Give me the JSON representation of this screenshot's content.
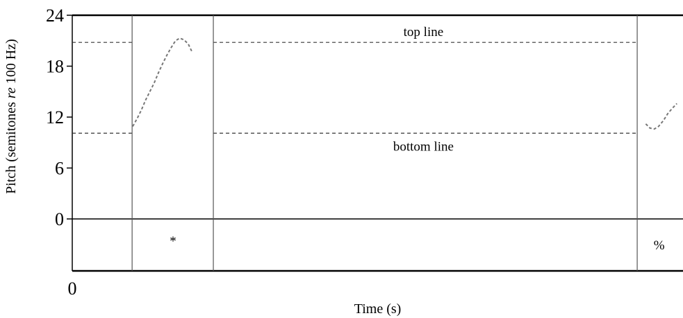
{
  "chart_data": {
    "type": "line",
    "title": "",
    "xlabel": "Time (s)",
    "ylabel_parts": [
      "Pitch (semitones ",
      "re",
      " 100 Hz)"
    ],
    "ylim": [
      0,
      24
    ],
    "y_ticks": [
      0,
      6,
      12,
      18,
      24
    ],
    "x_tick_labels": [
      "0"
    ],
    "grid": false,
    "reference_lines": [
      {
        "name": "top line",
        "y": 20.8
      },
      {
        "name": "bottom line",
        "y": 10.1
      }
    ],
    "segment_labels": [
      "*",
      "%"
    ],
    "series": [
      {
        "points": [
          [
            0.099,
            10.9
          ],
          [
            0.106,
            11.8
          ],
          [
            0.113,
            12.8
          ],
          [
            0.12,
            14.0
          ],
          [
            0.127,
            15.0
          ],
          [
            0.134,
            16.0
          ],
          [
            0.141,
            17.2
          ],
          [
            0.148,
            18.3
          ],
          [
            0.155,
            19.3
          ],
          [
            0.162,
            20.2
          ],
          [
            0.169,
            21.0
          ],
          [
            0.176,
            21.3
          ],
          [
            0.183,
            21.1
          ],
          [
            0.19,
            20.6
          ],
          [
            0.196,
            19.7
          ]
        ]
      },
      {
        "points": [
          [
            0.939,
            11.2
          ],
          [
            0.946,
            10.7
          ],
          [
            0.953,
            10.6
          ],
          [
            0.96,
            10.9
          ],
          [
            0.968,
            11.6
          ],
          [
            0.975,
            12.4
          ],
          [
            0.982,
            13.0
          ],
          [
            0.99,
            13.6
          ]
        ]
      }
    ]
  }
}
